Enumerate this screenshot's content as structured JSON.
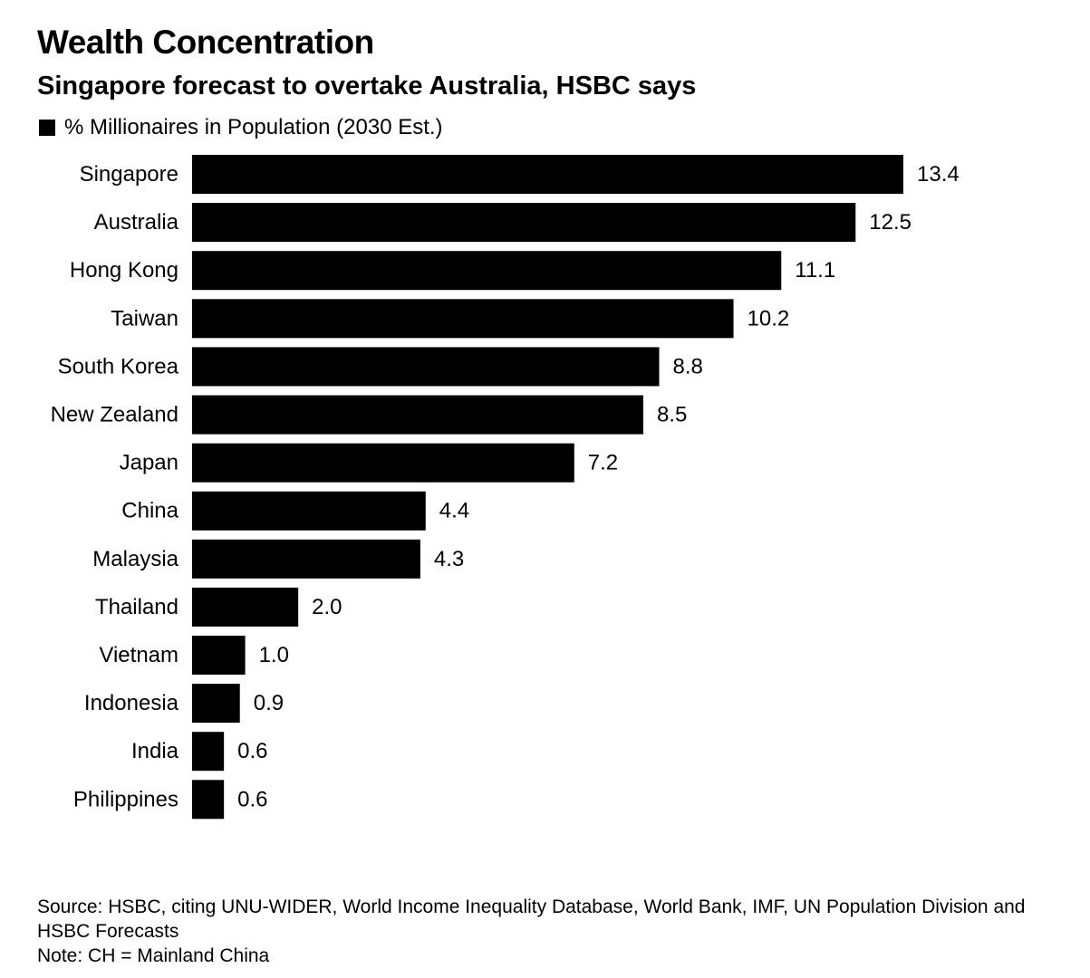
{
  "header": {
    "title": "Wealth Concentration",
    "subtitle": "Singapore forecast to overtake Australia, HSBC says"
  },
  "legend": {
    "label": "% Millionaires in Population (2030 Est.)"
  },
  "colors": {
    "bar": "#000000",
    "background": "#ffffff",
    "text": "#000000"
  },
  "chart_data": {
    "type": "bar",
    "orientation": "horizontal",
    "categories": [
      "Singapore",
      "Australia",
      "Hong Kong",
      "Taiwan",
      "South Korea",
      "New Zealand",
      "Japan",
      "China",
      "Malaysia",
      "Thailand",
      "Vietnam",
      "Indonesia",
      "India",
      "Philippines"
    ],
    "series": [
      {
        "name": "% Millionaires in Population (2030 Est.)",
        "values": [
          13.4,
          12.5,
          11.1,
          10.2,
          8.8,
          8.5,
          7.2,
          4.4,
          4.3,
          2.0,
          1.0,
          0.9,
          0.6,
          0.6
        ],
        "labels": [
          "13.4",
          "12.5",
          "11.1",
          "10.2",
          "8.8",
          "8.5",
          "7.2",
          "4.4",
          "4.3",
          "2.0",
          "1.0",
          "0.9",
          "0.6",
          "0.6"
        ]
      }
    ],
    "title": "Wealth Concentration",
    "subtitle": "Singapore forecast to overtake Australia, HSBC says",
    "xlim": [
      0,
      13.4
    ],
    "grid": false,
    "legend_position": "top-left"
  },
  "footer": {
    "source": "Source: HSBC, citing UNU-WIDER, World Income Inequality Database, World Bank, IMF, UN Population Division and HSBC Forecasts",
    "note": "Note: CH = Mainland China"
  }
}
